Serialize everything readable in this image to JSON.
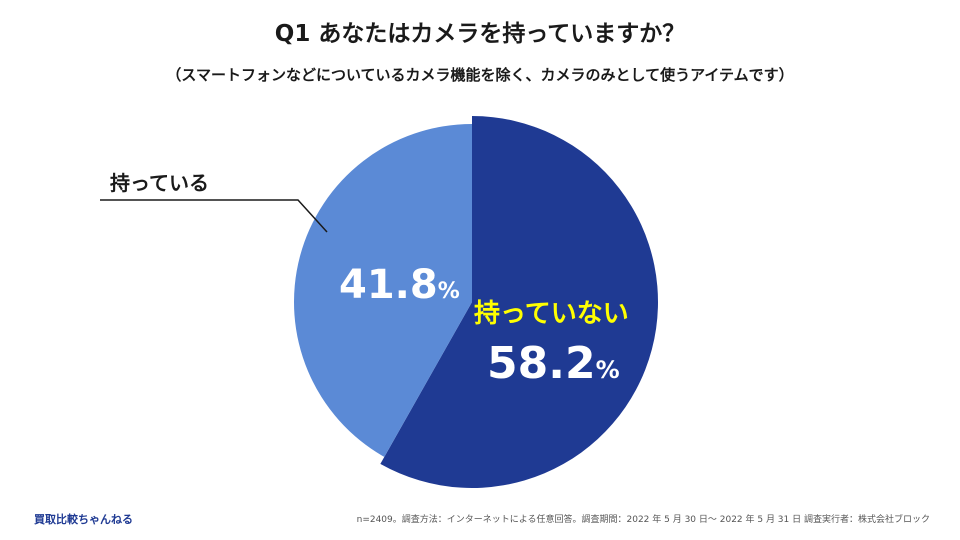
{
  "title": "Q1 あなたはカメラを持っていますか？",
  "subtitle": "（スマートフォンなどについているカメラ機能を除く、カメラのみとして使うアイテムです）",
  "chart_data": {
    "type": "pie",
    "slices": [
      {
        "label": "持っていない",
        "value": 58.2,
        "value_label": "58.2",
        "unit": "%",
        "color": "#1f3a93",
        "label_color": "#ffff00"
      },
      {
        "label": "持っている",
        "value": 41.8,
        "value_label": "41.8",
        "unit": "%",
        "color": "#5b8ad6",
        "label_color": "#1a1a1a"
      }
    ],
    "start_angle": "12 o'clock",
    "direction": "clockwise"
  },
  "footer": {
    "brand": "買取比較ちゃんねる",
    "note": "n=2409。調査方法：インターネットによる任意回答。調査期間：2022 年 5 月 30 日～ 2022 年 5 月 31 日 調査実行者：株式会社ブロック"
  }
}
